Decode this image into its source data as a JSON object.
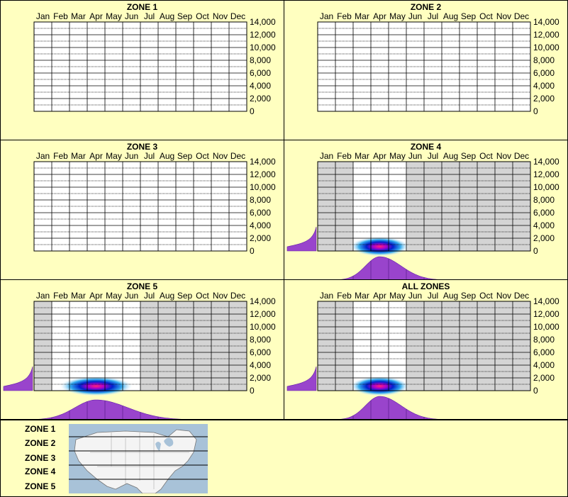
{
  "months": [
    "Jan",
    "Feb",
    "Mar",
    "Apr",
    "May",
    "Jun",
    "Jul",
    "Aug",
    "Sep",
    "Oct",
    "Nov",
    "Dec"
  ],
  "yticks": [
    "14,000",
    "12,000",
    "10,000",
    "8,000",
    "6,000",
    "4,000",
    "2,000",
    "0"
  ],
  "chart_data": [
    {
      "type": "heatmap",
      "title": "ZONE 1",
      "ylim": [
        0,
        14000
      ],
      "x": [
        "Jan",
        "Feb",
        "Mar",
        "Apr",
        "May",
        "Jun",
        "Jul",
        "Aug",
        "Sep",
        "Oct",
        "Nov",
        "Dec"
      ],
      "has_data": false
    },
    {
      "type": "heatmap",
      "title": "ZONE 2",
      "ylim": [
        0,
        14000
      ],
      "x": [
        "Jan",
        "Feb",
        "Mar",
        "Apr",
        "May",
        "Jun",
        "Jul",
        "Aug",
        "Sep",
        "Oct",
        "Nov",
        "Dec"
      ],
      "has_data": false
    },
    {
      "type": "heatmap",
      "title": "ZONE 3",
      "ylim": [
        0,
        14000
      ],
      "x": [
        "Jan",
        "Feb",
        "Mar",
        "Apr",
        "May",
        "Jun",
        "Jul",
        "Aug",
        "Sep",
        "Oct",
        "Nov",
        "Dec"
      ],
      "has_data": false
    },
    {
      "type": "heatmap",
      "title": "ZONE 4",
      "ylim": [
        0,
        14000
      ],
      "x": [
        "Jan",
        "Feb",
        "Mar",
        "Apr",
        "May",
        "Jun",
        "Jul",
        "Aug",
        "Sep",
        "Oct",
        "Nov",
        "Dec"
      ],
      "has_data": true,
      "observed_months": [
        "Mar",
        "Apr",
        "May"
      ],
      "peak_month": "Apr",
      "peak_elevation": 0
    },
    {
      "type": "heatmap",
      "title": "ZONE 5",
      "ylim": [
        0,
        14000
      ],
      "x": [
        "Jan",
        "Feb",
        "Mar",
        "Apr",
        "May",
        "Jun",
        "Jul",
        "Aug",
        "Sep",
        "Oct",
        "Nov",
        "Dec"
      ],
      "has_data": true,
      "observed_months": [
        "Feb",
        "Mar",
        "Apr",
        "May",
        "Jun"
      ],
      "peak_month": "Apr",
      "peak_elevation": 0
    },
    {
      "type": "heatmap",
      "title": "ALL ZONES",
      "ylim": [
        0,
        14000
      ],
      "x": [
        "Jan",
        "Feb",
        "Mar",
        "Apr",
        "May",
        "Jun",
        "Jul",
        "Aug",
        "Sep",
        "Oct",
        "Nov",
        "Dec"
      ],
      "has_data": true,
      "observed_months": [
        "Mar",
        "Apr",
        "May"
      ],
      "peak_month": "Apr",
      "peak_elevation": 0
    }
  ],
  "legend": {
    "zones": [
      "ZONE 1",
      "ZONE 2",
      "ZONE 3",
      "ZONE 4",
      "ZONE 5"
    ]
  },
  "colors": {
    "background": "#ffffc0",
    "density": "#9944cc",
    "no_data": "#c8c8c8",
    "grid": "#000000"
  }
}
